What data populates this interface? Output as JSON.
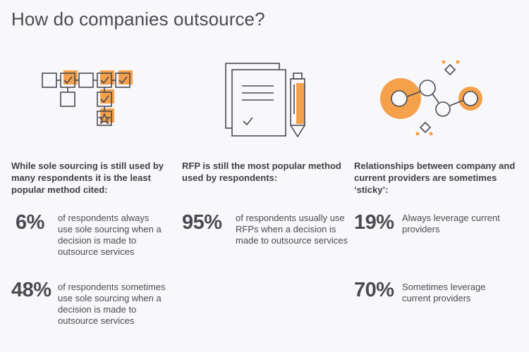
{
  "title": "How do companies outsource?",
  "colors": {
    "accent": "#f5a04a",
    "stroke": "#4a4a52",
    "background": "#f8f8fa"
  },
  "columns": [
    {
      "icon": "sourcing-flow-icon",
      "heading": "While sole sourcing is still used by many respondents it is the least popular method cited:",
      "stats": [
        {
          "value": "6%",
          "text": "of respondents always use sole sourcing when a decision is made to outsource services"
        },
        {
          "value": "48%",
          "text": "of respondents sometimes use sole sourcing when a decision is made to outsource services"
        }
      ]
    },
    {
      "icon": "rfp-document-pen-icon",
      "heading": "RFP is still the most popular method used by respondents:",
      "stats": [
        {
          "value": "95%",
          "text": "of respondents usually use RFPs when a decision is made to outsource services"
        }
      ]
    },
    {
      "icon": "network-relationship-icon",
      "heading": "Relationships between company and current providers are sometimes ‘sticky’:",
      "stats": [
        {
          "value": "19%",
          "text": "Always leverage current providers"
        },
        {
          "value": "70%",
          "text": "Sometimes leverage current providers"
        }
      ]
    }
  ]
}
